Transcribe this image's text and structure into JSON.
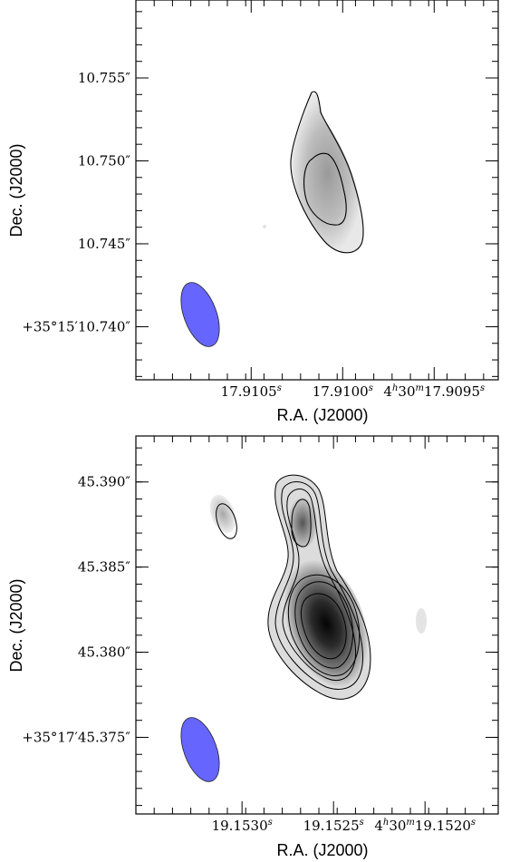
{
  "chart_data": [
    {
      "type": "contour",
      "xlabel": "R.A. (J2000)",
      "ylabel": "Dec. (J2000)",
      "x_ticks": [
        {
          "value": 17.9105,
          "label": "17.9105",
          "sup": "s",
          "prefix": "",
          "prefix_sup": ""
        },
        {
          "value": 17.91,
          "label": "17.9100",
          "sup": "s",
          "prefix": "",
          "prefix_sup": ""
        },
        {
          "value": 17.9095,
          "label": "17.9095",
          "sup": "s",
          "prefix": "4",
          "prefix_sup": "h",
          "mid": "30",
          "mid_sup": "m"
        }
      ],
      "y_ticks": [
        {
          "value": 10.755,
          "label": "10.755″"
        },
        {
          "value": 10.75,
          "label": "10.750″"
        },
        {
          "value": 10.745,
          "label": "10.745″"
        },
        {
          "value": 10.74,
          "label": "+35°15′10.740″"
        }
      ],
      "xlim": [
        17.91113,
        17.90915
      ],
      "ylim": [
        10.7368,
        10.7597
      ],
      "sources": [
        {
          "name": "main",
          "ra": 17.91004,
          "dec": 10.749,
          "peak_gray": 0.32,
          "contours": 2
        }
      ],
      "beam": {
        "ra": 17.91056,
        "dec": 10.7414,
        "color": "#6666ff"
      }
    },
    {
      "type": "contour",
      "xlabel": "R.A. (J2000)",
      "ylabel": "Dec. (J2000)",
      "x_ticks": [
        {
          "value": 19.153,
          "label": "19.1530",
          "sup": "s"
        },
        {
          "value": 19.1525,
          "label": "19.1525",
          "sup": "s"
        },
        {
          "value": 19.152,
          "label": "19.1520",
          "sup": "s",
          "prefix": "4",
          "prefix_sup": "h",
          "mid": "30",
          "mid_sup": "m"
        }
      ],
      "y_ticks": [
        {
          "value": 45.39,
          "label": "45.390″"
        },
        {
          "value": 45.385,
          "label": "45.385″"
        },
        {
          "value": 45.38,
          "label": "45.380″"
        },
        {
          "value": 45.375,
          "label": "+35°17′45.375″"
        }
      ],
      "xlim": [
        19.15358,
        19.1516
      ],
      "ylim": [
        45.3705,
        45.3927
      ],
      "sources": [
        {
          "name": "secondary-north",
          "ra": 19.15269,
          "dec": 45.3876,
          "peak_gray": 0.45,
          "contours": 5
        },
        {
          "name": "primary",
          "ra": 19.15255,
          "dec": 45.3813,
          "peak_gray": 1.0,
          "contours": 6
        },
        {
          "name": "companion",
          "ra": 19.15293,
          "dec": 45.3875,
          "peak_gray": 0.2,
          "contours": 1
        }
      ],
      "beam": {
        "ra": 19.15312,
        "dec": 45.374,
        "color": "#6666ff"
      }
    }
  ]
}
